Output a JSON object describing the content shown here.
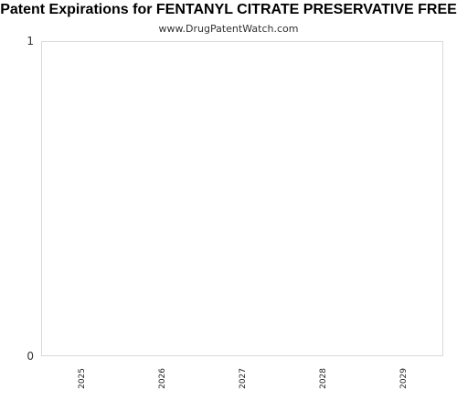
{
  "chart_data": {
    "type": "bar",
    "title": "Patent Expirations for FENTANYL CITRATE PRESERVATIVE FREE",
    "subtitle": "www.DrugPatentWatch.com",
    "categories": [
      "2025",
      "2026",
      "2027",
      "2028",
      "2029"
    ],
    "values": [
      0,
      0,
      0,
      0,
      0
    ],
    "ylim": [
      0,
      1
    ],
    "yticks": [
      "0",
      "1"
    ],
    "xlabel": "",
    "ylabel": "",
    "grid": false,
    "colors": {
      "frame": "#d9d9d9",
      "bar": "#4a7ebb"
    }
  }
}
